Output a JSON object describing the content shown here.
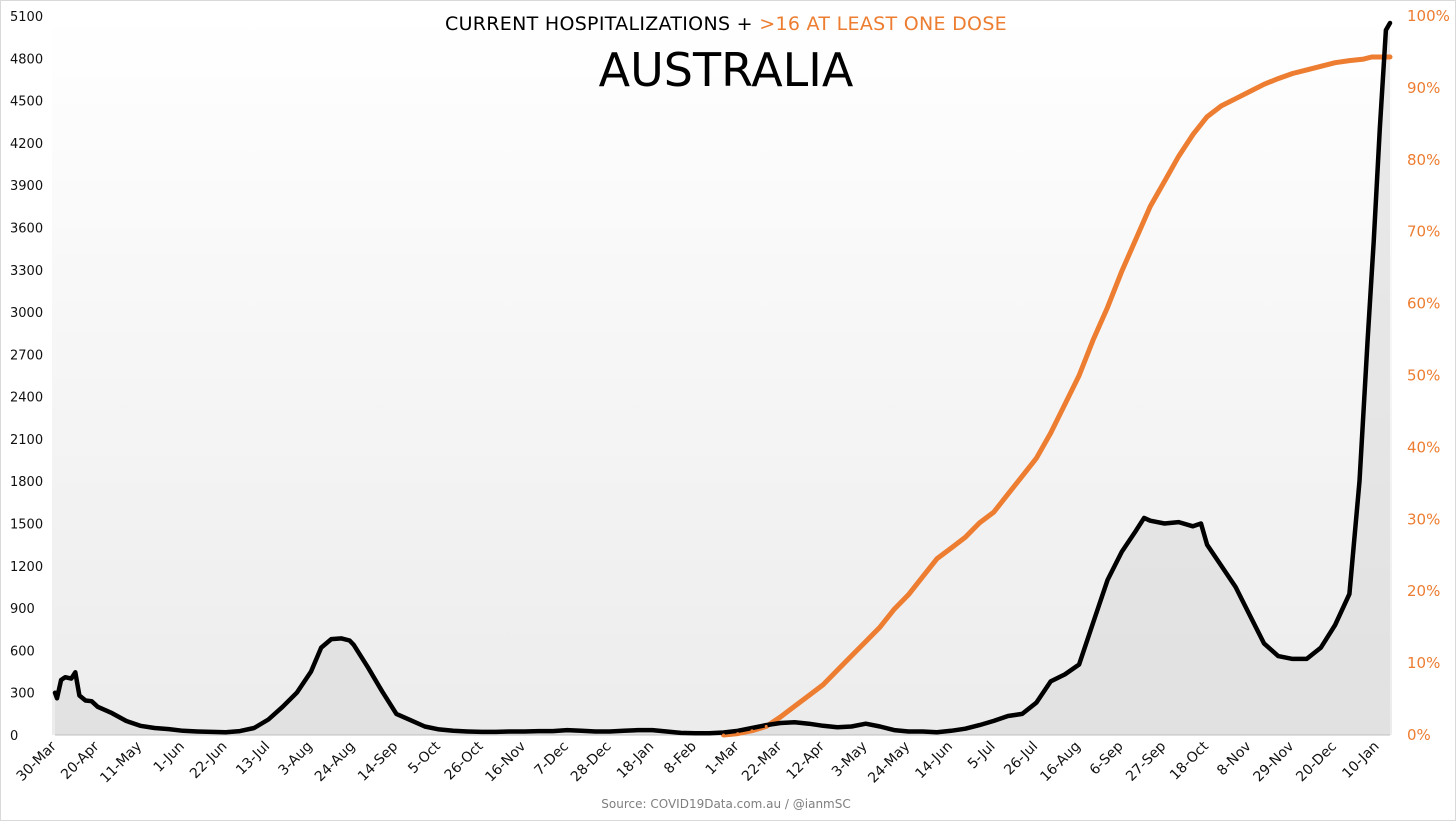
{
  "chart_data": {
    "type": "line",
    "title": "AUSTRALIA",
    "subtitle": {
      "prefix": "CURRENT HOSPITALIZATIONS + ",
      "highlight": ">16 AT LEAST ONE DOSE"
    },
    "source": "Source: COVID19Data.com.au / @ianmSC",
    "x_tick_labels": [
      "30-Mar",
      "20-Apr",
      "11-May",
      "1-Jun",
      "22-Jun",
      "13-Jul",
      "3-Aug",
      "24-Aug",
      "14-Sep",
      "5-Oct",
      "26-Oct",
      "16-Nov",
      "7-Dec",
      "28-Dec",
      "18-Jan",
      "8-Feb",
      "1-Mar",
      "22-Mar",
      "12-Apr",
      "3-May",
      "24-May",
      "14-Jun",
      "5-Jul",
      "26-Jul",
      "16-Aug",
      "6-Sep",
      "27-Sep",
      "18-Oct",
      "8-Nov",
      "29-Nov",
      "20-Dec",
      "10-Jan"
    ],
    "y_left": {
      "ylim": [
        0,
        5100
      ],
      "ticks": [
        0,
        300,
        600,
        900,
        1200,
        1500,
        1800,
        2100,
        2400,
        2700,
        3000,
        3300,
        3600,
        3900,
        4200,
        4500,
        4800,
        5100
      ]
    },
    "y_right": {
      "ylim": [
        0,
        100
      ],
      "ticks": [
        "0%",
        "10%",
        "20%",
        "30%",
        "40%",
        "50%",
        "60%",
        "70%",
        "80%",
        "90%",
        "100%"
      ]
    },
    "grid": false,
    "series": [
      {
        "name": "CURRENT HOSPITALIZATIONS",
        "axis": "left",
        "color": "#000000",
        "points": [
          [
            "30-Mar",
            300
          ],
          [
            "31-Mar",
            260
          ],
          [
            "2-Apr",
            390
          ],
          [
            "4-Apr",
            410
          ],
          [
            "7-Apr",
            400
          ],
          [
            "9-Apr",
            445
          ],
          [
            "11-Apr",
            280
          ],
          [
            "14-Apr",
            245
          ],
          [
            "17-Apr",
            240
          ],
          [
            "20-Apr",
            200
          ],
          [
            "27-Apr",
            155
          ],
          [
            "4-May",
            100
          ],
          [
            "11-May",
            65
          ],
          [
            "18-May",
            50
          ],
          [
            "25-May",
            42
          ],
          [
            "1-Jun",
            30
          ],
          [
            "8-Jun",
            25
          ],
          [
            "15-Jun",
            22
          ],
          [
            "22-Jun",
            20
          ],
          [
            "29-Jun",
            28
          ],
          [
            "6-Jul",
            50
          ],
          [
            "13-Jul",
            110
          ],
          [
            "20-Jul",
            200
          ],
          [
            "27-Jul",
            300
          ],
          [
            "3-Aug",
            450
          ],
          [
            "8-Aug",
            620
          ],
          [
            "13-Aug",
            680
          ],
          [
            "18-Aug",
            685
          ],
          [
            "22-Aug",
            670
          ],
          [
            "24-Aug",
            640
          ],
          [
            "31-Aug",
            480
          ],
          [
            "7-Sep",
            310
          ],
          [
            "14-Sep",
            150
          ],
          [
            "21-Sep",
            105
          ],
          [
            "28-Sep",
            60
          ],
          [
            "5-Oct",
            40
          ],
          [
            "12-Oct",
            30
          ],
          [
            "19-Oct",
            25
          ],
          [
            "26-Oct",
            22
          ],
          [
            "2-Nov",
            22
          ],
          [
            "9-Nov",
            25
          ],
          [
            "16-Nov",
            25
          ],
          [
            "23-Nov",
            28
          ],
          [
            "30-Nov",
            28
          ],
          [
            "7-Dec",
            35
          ],
          [
            "14-Dec",
            30
          ],
          [
            "21-Dec",
            25
          ],
          [
            "28-Dec",
            25
          ],
          [
            "4-Jan",
            30
          ],
          [
            "11-Jan",
            35
          ],
          [
            "18-Jan",
            35
          ],
          [
            "25-Jan",
            25
          ],
          [
            "1-Feb",
            15
          ],
          [
            "8-Feb",
            12
          ],
          [
            "15-Feb",
            12
          ],
          [
            "22-Feb",
            18
          ],
          [
            "1-Mar",
            30
          ],
          [
            "8-Mar",
            50
          ],
          [
            "15-Mar",
            70
          ],
          [
            "22-Mar",
            85
          ],
          [
            "29-Mar",
            90
          ],
          [
            "5-Apr",
            80
          ],
          [
            "12-Apr",
            65
          ],
          [
            "19-Apr",
            55
          ],
          [
            "26-Apr",
            60
          ],
          [
            "3-May",
            80
          ],
          [
            "10-May",
            60
          ],
          [
            "17-May",
            35
          ],
          [
            "24-May",
            25
          ],
          [
            "31-May",
            25
          ],
          [
            "7-Jun",
            20
          ],
          [
            "14-Jun",
            30
          ],
          [
            "21-Jun",
            45
          ],
          [
            "28-Jun",
            70
          ],
          [
            "5-Jul",
            100
          ],
          [
            "12-Jul",
            135
          ],
          [
            "19-Jul",
            150
          ],
          [
            "26-Jul",
            230
          ],
          [
            "2-Aug",
            380
          ],
          [
            "9-Aug",
            430
          ],
          [
            "16-Aug",
            500
          ],
          [
            "23-Aug",
            800
          ],
          [
            "30-Aug",
            1100
          ],
          [
            "6-Sep",
            1300
          ],
          [
            "13-Sep",
            1450
          ],
          [
            "17-Sep",
            1540
          ],
          [
            "20-Sep",
            1520
          ],
          [
            "27-Sep",
            1500
          ],
          [
            "4-Oct",
            1510
          ],
          [
            "11-Oct",
            1480
          ],
          [
            "15-Oct",
            1500
          ],
          [
            "18-Oct",
            1350
          ],
          [
            "25-Oct",
            1200
          ],
          [
            "1-Nov",
            1050
          ],
          [
            "8-Nov",
            850
          ],
          [
            "15-Nov",
            650
          ],
          [
            "22-Nov",
            560
          ],
          [
            "29-Nov",
            540
          ],
          [
            "6-Dec",
            540
          ],
          [
            "13-Dec",
            620
          ],
          [
            "20-Dec",
            780
          ],
          [
            "27-Dec",
            1000
          ],
          [
            "1-Jan",
            1800
          ],
          [
            "5-Jan",
            2800
          ],
          [
            "8-Jan",
            3500
          ],
          [
            "11-Jan",
            4300
          ],
          [
            "14-Jan",
            5000
          ],
          [
            "16-Jan",
            5050
          ]
        ]
      },
      {
        "name": ">16 AT LEAST ONE DOSE",
        "axis": "right",
        "unit": "%",
        "color": "#ED7D31",
        "points": [
          [
            "22-Feb",
            0
          ],
          [
            "1-Mar",
            0.2
          ],
          [
            "8-Mar",
            0.6
          ],
          [
            "15-Mar",
            1.2
          ],
          [
            "22-Mar",
            2.5
          ],
          [
            "29-Mar",
            4
          ],
          [
            "5-Apr",
            5.5
          ],
          [
            "12-Apr",
            7
          ],
          [
            "19-Apr",
            9
          ],
          [
            "26-Apr",
            11
          ],
          [
            "3-May",
            13
          ],
          [
            "10-May",
            15
          ],
          [
            "17-May",
            17.5
          ],
          [
            "24-May",
            19.5
          ],
          [
            "31-May",
            22
          ],
          [
            "7-Jun",
            24.5
          ],
          [
            "14-Jun",
            26
          ],
          [
            "21-Jun",
            27.5
          ],
          [
            "28-Jun",
            29.5
          ],
          [
            "5-Jul",
            31
          ],
          [
            "12-Jul",
            33.5
          ],
          [
            "19-Jul",
            36
          ],
          [
            "26-Jul",
            38.5
          ],
          [
            "2-Aug",
            42
          ],
          [
            "9-Aug",
            46
          ],
          [
            "16-Aug",
            50
          ],
          [
            "23-Aug",
            55
          ],
          [
            "30-Aug",
            59.5
          ],
          [
            "6-Sep",
            64.5
          ],
          [
            "13-Sep",
            69
          ],
          [
            "20-Sep",
            73.5
          ],
          [
            "27-Sep",
            77
          ],
          [
            "4-Oct",
            80.5
          ],
          [
            "11-Oct",
            83.5
          ],
          [
            "18-Oct",
            86
          ],
          [
            "25-Oct",
            87.5
          ],
          [
            "1-Nov",
            88.5
          ],
          [
            "8-Nov",
            89.5
          ],
          [
            "15-Nov",
            90.5
          ],
          [
            "22-Nov",
            91.3
          ],
          [
            "29-Nov",
            92
          ],
          [
            "6-Dec",
            92.5
          ],
          [
            "13-Dec",
            93
          ],
          [
            "20-Dec",
            93.5
          ],
          [
            "27-Dec",
            93.8
          ],
          [
            "3-Jan",
            94
          ],
          [
            "7-Jan",
            94.3
          ],
          [
            "16-Jan",
            94.3
          ]
        ]
      }
    ]
  }
}
